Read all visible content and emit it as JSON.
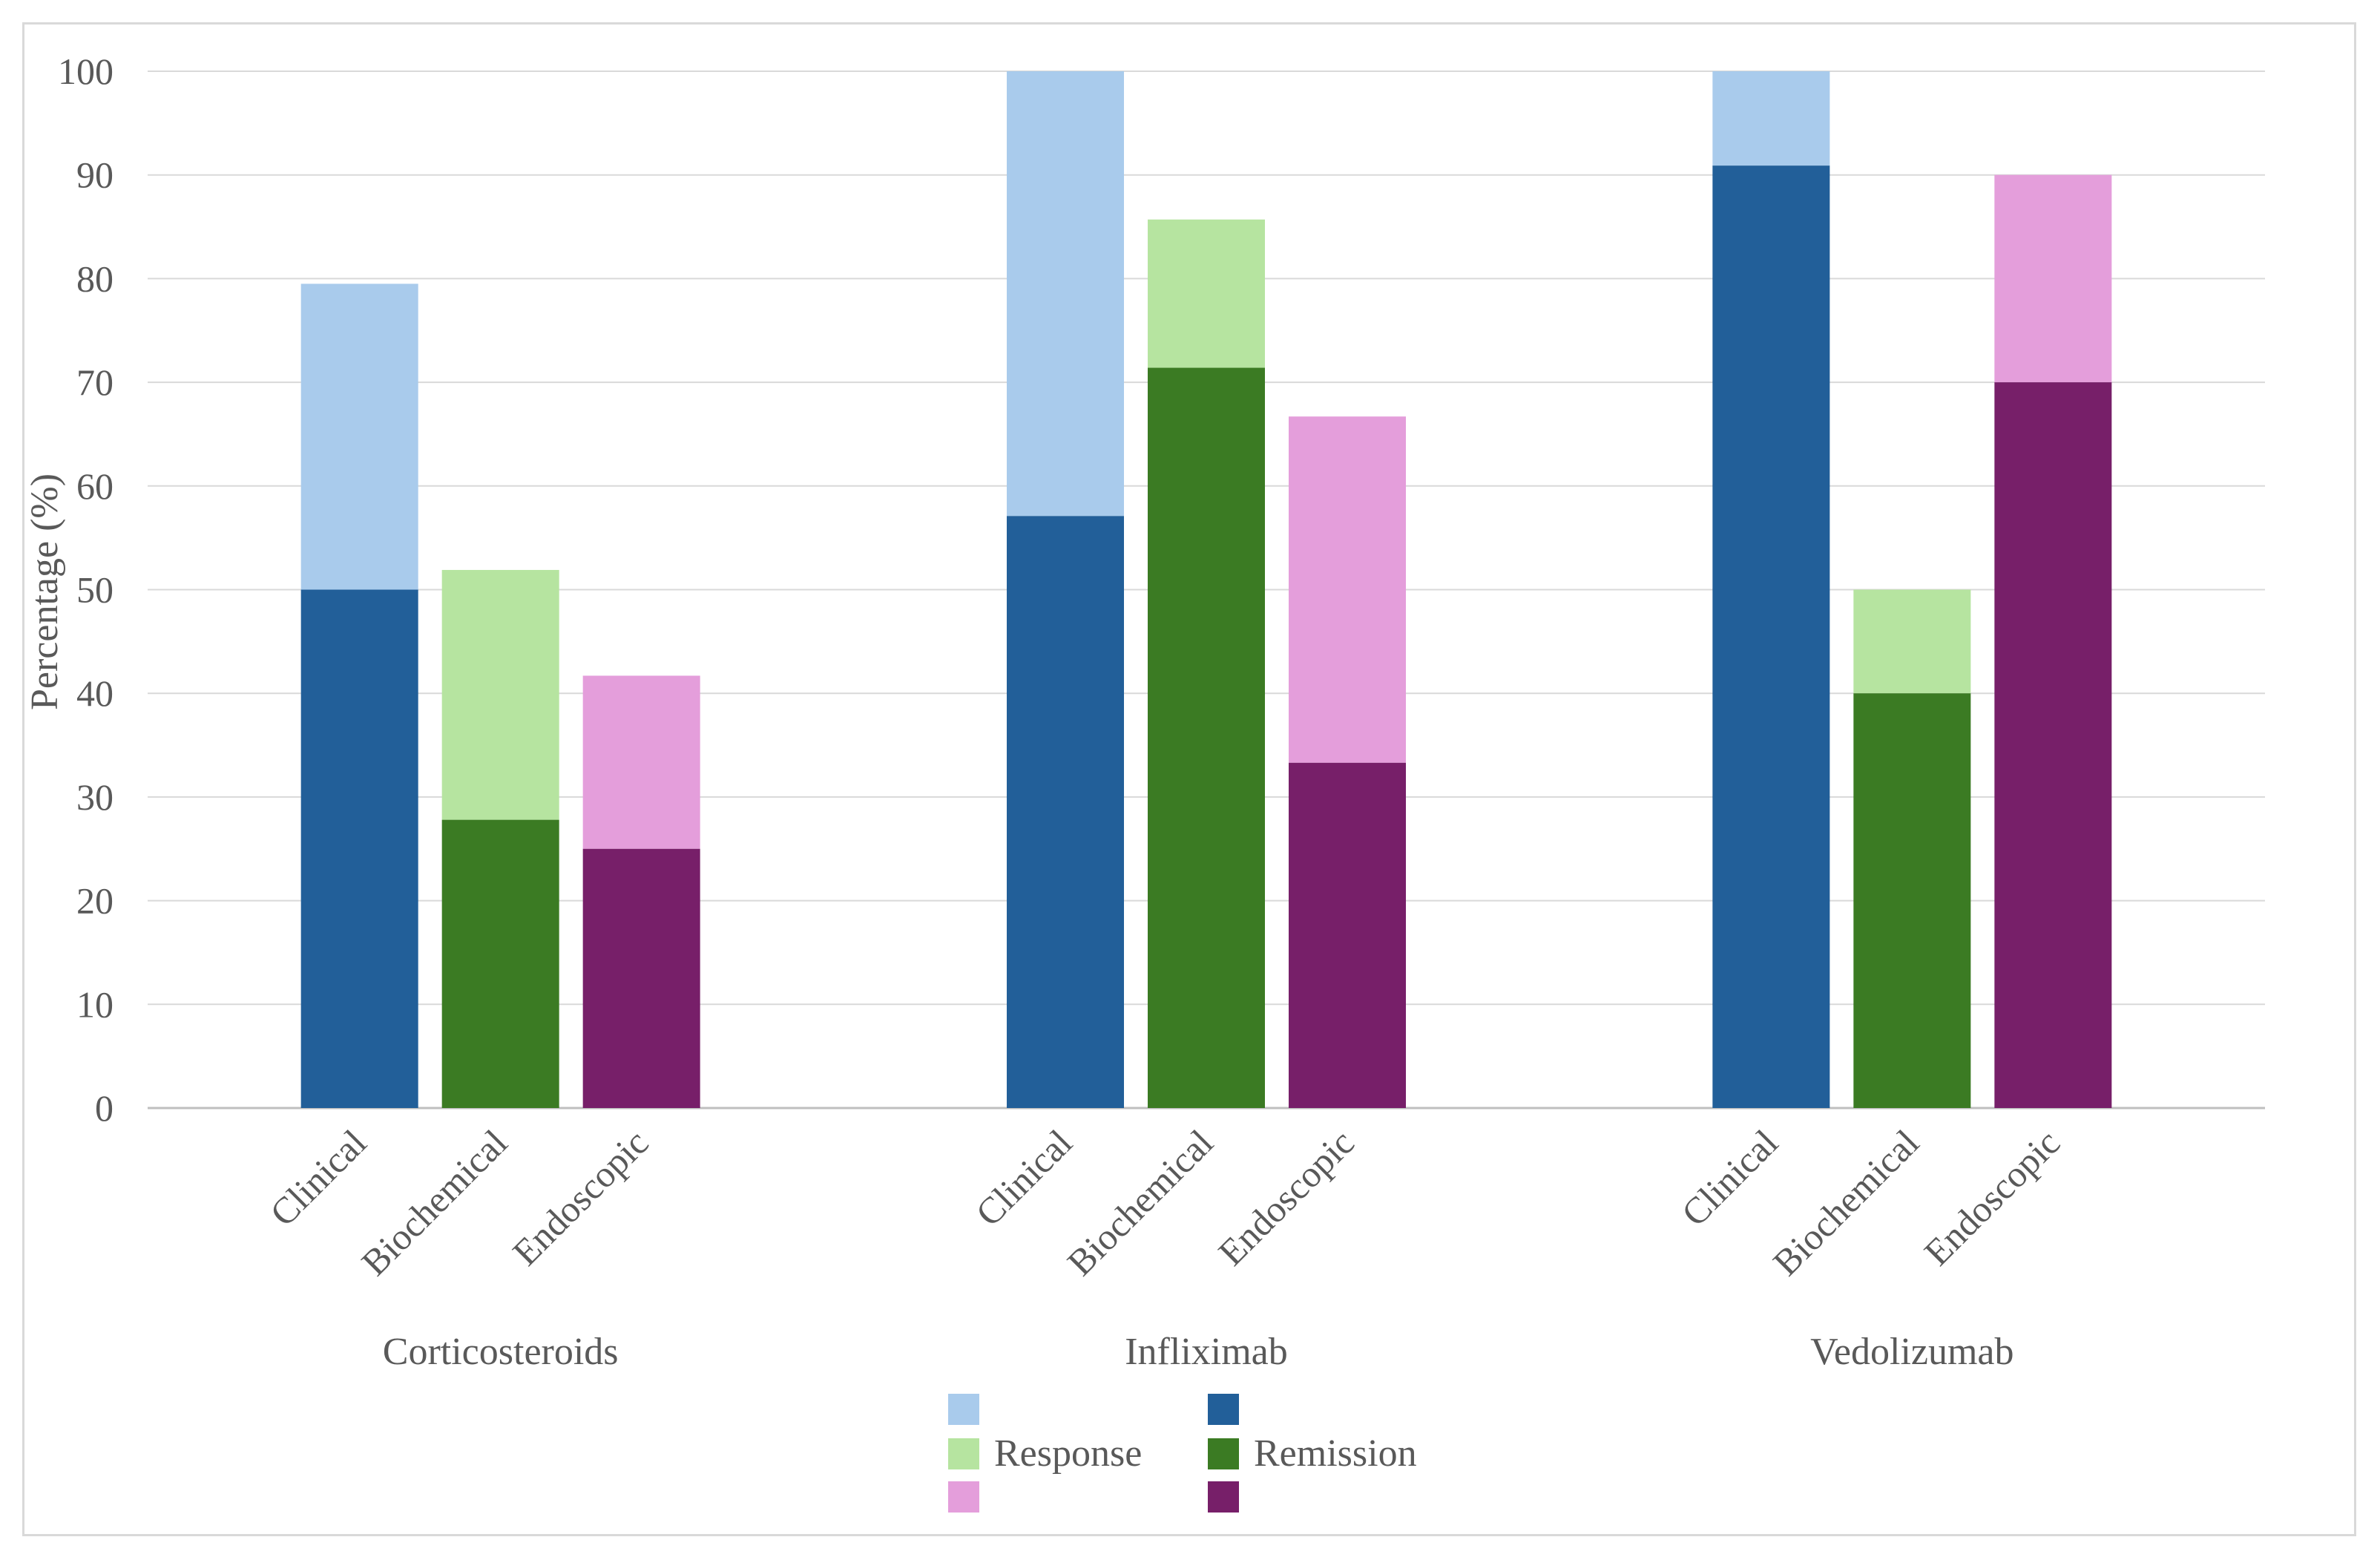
{
  "chart_data": {
    "type": "bar",
    "stacked": true,
    "title": "",
    "ylabel": "Percentage (%)",
    "xlabel": "",
    "ylim": [
      0,
      100
    ],
    "yticks": [
      0,
      10,
      20,
      30,
      40,
      50,
      60,
      70,
      80,
      90,
      100
    ],
    "grid": true,
    "groups": [
      {
        "name": "Corticosteroids",
        "bars": [
          {
            "label": "Clinical",
            "remission": 50,
            "response": 79.5
          },
          {
            "label": "Biochemical",
            "remission": 27.8,
            "response": 51.9
          },
          {
            "label": "Endoscopic",
            "remission": 25,
            "response": 41.7
          }
        ]
      },
      {
        "name": "Infliximab",
        "bars": [
          {
            "label": "Clinical",
            "remission": 57.1,
            "response": 100
          },
          {
            "label": "Biochemical",
            "remission": 71.4,
            "response": 85.7
          },
          {
            "label": "Endoscopic",
            "remission": 33.3,
            "response": 66.7
          }
        ]
      },
      {
        "name": "Vedolizumab",
        "bars": [
          {
            "label": "Clinical",
            "remission": 90.9,
            "response": 100
          },
          {
            "label": "Biochemical",
            "remission": 40,
            "response": 50
          },
          {
            "label": "Endoscopic",
            "remission": 70,
            "response": 90
          }
        ]
      }
    ],
    "colors": {
      "Clinical": {
        "response": "#a9cbec",
        "remission": "#225f99"
      },
      "Biochemical": {
        "response": "#b6e4a0",
        "remission": "#3b7b23"
      },
      "Endoscopic": {
        "response": "#e49edb",
        "remission": "#771f69"
      }
    },
    "legend": {
      "position": "bottom",
      "response_label": "Response",
      "remission_label": "Remission"
    }
  }
}
